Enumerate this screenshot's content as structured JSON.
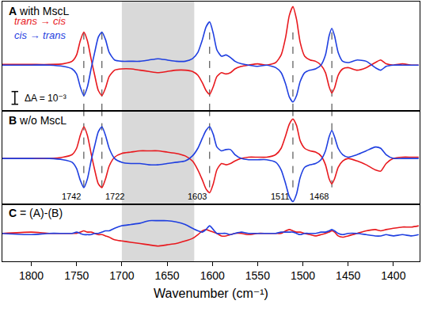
{
  "chart_data": [
    {
      "type": "line",
      "label": "A",
      "title": "with MscL",
      "xlim": [
        1832,
        1371
      ],
      "ylim": [
        -0.0036,
        0.005
      ],
      "tick_labels": false,
      "highlight_x": [
        1700,
        1620
      ],
      "vlines": [
        1742,
        1722,
        1603,
        1511,
        1468
      ],
      "scale_bar": {
        "value": 0.001,
        "label": "ΔA = 10⁻³"
      },
      "x": [
        1832,
        1800,
        1780,
        1765,
        1755,
        1750,
        1746,
        1742,
        1738,
        1734,
        1730,
        1726,
        1722,
        1718,
        1714,
        1708,
        1700,
        1690,
        1680,
        1670,
        1660,
        1650,
        1640,
        1630,
        1622,
        1616,
        1611,
        1607,
        1603,
        1599,
        1595,
        1590,
        1585,
        1580,
        1575,
        1568,
        1560,
        1550,
        1540,
        1530,
        1524,
        1519,
        1515,
        1511,
        1507,
        1503,
        1498,
        1492,
        1486,
        1480,
        1475,
        1471,
        1468,
        1465,
        1461,
        1456,
        1450,
        1440,
        1430,
        1420,
        1414,
        1408,
        1400,
        1390,
        1380,
        1372
      ],
      "series": [
        {
          "name": "trans → cis",
          "color": "#e8191e",
          "values": [
            5e-05,
            5e-05,
            5e-05,
            0.0001,
            0.0003,
            0.0008,
            0.0019,
            0.0026,
            0.0019,
            0.0005,
            -0.0008,
            -0.002,
            -0.0024,
            -0.0018,
            -0.0009,
            -0.0004,
            -0.0003,
            -0.0003,
            -0.0004,
            -0.0005,
            -0.0006,
            -0.0005,
            -0.0004,
            -0.0004,
            -0.0005,
            -0.0008,
            -0.0014,
            -0.002,
            -0.0023,
            -0.0017,
            -0.0009,
            -0.0006,
            -0.0007,
            -0.0006,
            -0.0003,
            -0.0001,
            0,
            0.0001,
            0,
            0.0002,
            0.0008,
            0.0022,
            0.0039,
            0.0046,
            0.0036,
            0.0018,
            0.0007,
            0.0004,
            0.0003,
            0,
            -0.0006,
            -0.0017,
            -0.0022,
            -0.0018,
            -0.0008,
            -0.0003,
            -0.0002,
            -0.0004,
            -0.0002,
            0.0002,
            0.0004,
            0.0001,
            0,
            0.0001,
            0,
            0
          ]
        },
        {
          "name": "cis → trans",
          "color": "#1f3fe0",
          "values": [
            0,
            0,
            0,
            -0.0001,
            -0.0003,
            -0.0007,
            -0.0017,
            -0.0024,
            -0.0017,
            -0.0003,
            0.001,
            0.0022,
            0.0026,
            0.002,
            0.001,
            0.0004,
            0.0003,
            0.0003,
            0.0003,
            0.0004,
            0.0005,
            0.0004,
            0.0003,
            0.0003,
            0.0005,
            0.001,
            0.002,
            0.003,
            0.0034,
            0.0025,
            0.0012,
            0.0007,
            0.0008,
            0.0006,
            0.0003,
            0.0001,
            0,
            -0.0001,
            0,
            -0.0002,
            -0.0006,
            -0.0015,
            -0.0025,
            -0.0029,
            -0.0024,
            -0.0013,
            -0.0006,
            -0.0004,
            -0.0003,
            0,
            0.0008,
            0.0023,
            0.0029,
            0.0023,
            0.001,
            0.0003,
            0.0002,
            0.0004,
            0.0003,
            -0.0002,
            -0.0004,
            -0.0001,
            0,
            0,
            0,
            0
          ]
        }
      ]
    },
    {
      "type": "line",
      "label": "B",
      "title": "w/o MscL",
      "xlim": [
        1832,
        1371
      ],
      "ylim": [
        -0.0036,
        0.00375
      ],
      "tick_labels": false,
      "highlight_x": [
        1700,
        1620
      ],
      "vlines": [
        1742,
        1722,
        1603,
        1511,
        1468
      ],
      "peak_labels": [
        {
          "x": 1742,
          "text": "1742"
        },
        {
          "x": 1722,
          "text": "1722"
        },
        {
          "x": 1603,
          "text": "1603"
        },
        {
          "x": 1511,
          "text": "1511"
        },
        {
          "x": 1468,
          "text": "1468"
        }
      ],
      "x": [
        1832,
        1800,
        1780,
        1765,
        1755,
        1750,
        1746,
        1742,
        1738,
        1734,
        1730,
        1726,
        1722,
        1718,
        1714,
        1708,
        1700,
        1690,
        1680,
        1670,
        1660,
        1650,
        1640,
        1630,
        1622,
        1616,
        1611,
        1607,
        1603,
        1599,
        1595,
        1590,
        1585,
        1580,
        1575,
        1568,
        1560,
        1550,
        1540,
        1530,
        1524,
        1519,
        1515,
        1511,
        1507,
        1503,
        1498,
        1492,
        1486,
        1480,
        1475,
        1471,
        1468,
        1465,
        1461,
        1456,
        1450,
        1440,
        1430,
        1420,
        1414,
        1408,
        1400,
        1390,
        1380,
        1372
      ],
      "series": [
        {
          "color": "#e8191e",
          "values": [
            0,
            0,
            0,
            0.0001,
            0.0003,
            0.0008,
            0.0018,
            0.0025,
            0.0018,
            0.0004,
            -0.0009,
            -0.002,
            -0.0023,
            -0.0016,
            -0.0006,
            0.0001,
            0.0004,
            0.0005,
            0.0006,
            0.0006,
            0.0006,
            0.0005,
            0.0004,
            0.0002,
            -0.0002,
            -0.0009,
            -0.0017,
            -0.0024,
            -0.0027,
            -0.002,
            -0.0009,
            -0.0004,
            -0.0005,
            -0.0004,
            -0.0002,
            0,
            0.0001,
            0.0001,
            0.0001,
            0.0003,
            0.0008,
            0.0018,
            0.0027,
            0.0031,
            0.0026,
            0.0014,
            0.0008,
            0.0006,
            0.0005,
            0.0002,
            -0.0005,
            -0.0016,
            -0.002,
            -0.0016,
            -0.0007,
            -0.0002,
            0,
            -0.0002,
            -0.0005,
            -0.0009,
            -0.001,
            -0.0004,
            0,
            0.0001,
            0.0001,
            0.0001
          ]
        },
        {
          "color": "#1f3fe0",
          "values": [
            0,
            0,
            0,
            -0.0001,
            -0.0003,
            -0.0008,
            -0.0017,
            -0.0023,
            -0.0016,
            -0.0002,
            0.001,
            0.0021,
            0.0025,
            0.0018,
            0.0008,
            0,
            -0.0003,
            -0.0004,
            -0.0004,
            -0.0005,
            -0.0005,
            -0.0004,
            -0.0003,
            -0.0002,
            0.0002,
            0.0008,
            0.0016,
            0.0022,
            0.0025,
            0.0019,
            0.0009,
            0.0006,
            0.0007,
            0.0007,
            0.0003,
            0,
            -0.0001,
            -0.0001,
            -0.0001,
            -0.0003,
            -0.0009,
            -0.002,
            -0.003,
            -0.0034,
            -0.0028,
            -0.0015,
            -0.0007,
            -0.0005,
            -0.0004,
            -0.0001,
            0.0006,
            0.0017,
            0.0022,
            0.0017,
            0.0008,
            0.0003,
            0.0001,
            0.0003,
            0.0006,
            0.0009,
            0.0008,
            0.0003,
            0,
            0,
            0,
            0
          ]
        }
      ]
    },
    {
      "type": "line",
      "label": "C",
      "title": "= (A)-(B)",
      "xlim": [
        1832,
        1371
      ],
      "ylim": [
        -0.0022,
        0.0023
      ],
      "tick_labels": "x",
      "xticks": [
        1800,
        1750,
        1700,
        1650,
        1600,
        1550,
        1500,
        1450,
        1400
      ],
      "x_label": "Wavenumber (cm⁻¹)",
      "highlight_x": [
        1700,
        1620
      ],
      "x": [
        1832,
        1800,
        1780,
        1765,
        1755,
        1750,
        1746,
        1742,
        1738,
        1734,
        1730,
        1726,
        1722,
        1718,
        1714,
        1708,
        1700,
        1690,
        1680,
        1670,
        1660,
        1650,
        1640,
        1630,
        1622,
        1616,
        1611,
        1607,
        1603,
        1599,
        1595,
        1590,
        1585,
        1580,
        1575,
        1568,
        1560,
        1550,
        1540,
        1530,
        1524,
        1519,
        1515,
        1511,
        1507,
        1503,
        1498,
        1492,
        1486,
        1480,
        1475,
        1471,
        1468,
        1465,
        1461,
        1456,
        1450,
        1440,
        1430,
        1420,
        1414,
        1408,
        1400,
        1390,
        1380,
        1372
      ],
      "series": [
        {
          "color": "#e8191e",
          "values": [
            0,
            0.0001,
            0,
            0,
            0,
            0,
            0.0001,
            0.0002,
            0.0001,
            0.0001,
            0,
            -0.0001,
            -0.0001,
            -0.0002,
            -0.0003,
            -0.0005,
            -0.0006,
            -0.0007,
            -0.0008,
            -0.0009,
            -0.001,
            -0.0009,
            -0.0008,
            -0.0006,
            -0.0004,
            -0.0001,
            0.0002,
            0.0003,
            0.0002,
            0.0001,
            0,
            -0.0002,
            -0.0002,
            -0.0001,
            0,
            0,
            -0.0001,
            0,
            0,
            0,
            0,
            0.0002,
            0.0003,
            0.0002,
            0.0001,
            0.0001,
            0,
            -0.0001,
            -0.0002,
            -0.0001,
            0,
            0.0001,
            0.0002,
            0.0001,
            -0.0002,
            -0.0003,
            -0.0002,
            0,
            0.0002,
            0.0003,
            0.0002,
            0.0003,
            0.0004,
            0.0005,
            0.0005,
            0.0006
          ]
        },
        {
          "color": "#1f3fe0",
          "values": [
            0,
            -0.0001,
            0,
            0,
            0,
            0.0001,
            0,
            -0.0001,
            -0.0001,
            -0.0001,
            0,
            0,
            0.0001,
            0.0002,
            0.0002,
            0.0004,
            0.0006,
            0.0007,
            0.0008,
            0.001,
            0.001,
            0.001,
            0.0009,
            0.0007,
            0.0004,
            0.0002,
            0.0001,
            0.0003,
            0.0006,
            0.0003,
            0,
            0,
            0,
            -0.0001,
            0,
            0.0001,
            0,
            0,
            0,
            0,
            0.0001,
            0.0001,
            0.0001,
            0.0001,
            0,
            -0.0001,
            0,
            0,
            0,
            0.0001,
            0.0001,
            0.0002,
            0.0003,
            0.0002,
            0,
            -0.0001,
            0,
            0,
            -0.0001,
            -0.0002,
            -0.0002,
            -0.0001,
            -0.0002,
            -0.0001,
            -0.0002,
            -0.0001
          ]
        }
      ]
    }
  ]
}
